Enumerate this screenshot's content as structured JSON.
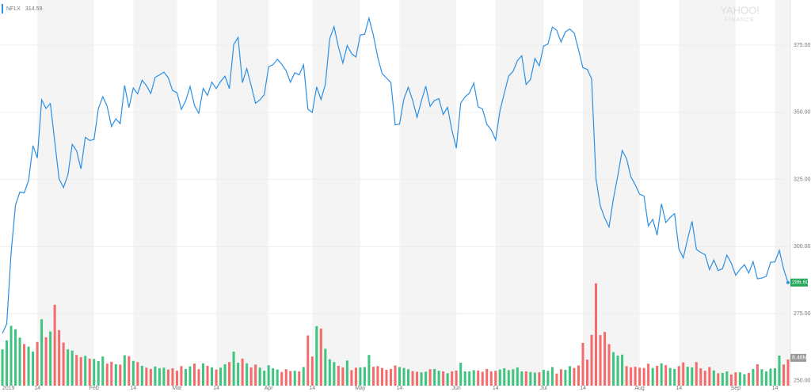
{
  "chart_data": {
    "type": "stock",
    "ticker": "NFLX",
    "legend_price": "314.59",
    "watermark": [
      "YAHOO!",
      "FINANCE"
    ],
    "series": [
      {
        "name": "NFLX",
        "color": "#2b8fe3",
        "axis": "y",
        "values": [
          267.66,
          271.2,
          297.57,
          315.34,
          320.27,
          319.96,
          324.66,
          337.59,
          332.94,
          354.64,
          351.39,
          353.19,
          339.1,
          325.16,
          321.99,
          326.67,
          338.05,
          335.66,
          328.9,
          340.66,
          339.5,
          339.85,
          351.34,
          355.81,
          352.19,
          344.71,
          347.57,
          345.73,
          359.97,
          351.77,
          359.07,
          356.87,
          361.92,
          359.91,
          356.97,
          363.02,
          363.91,
          364.97,
          362.87,
          358.1,
          357.32,
          351.04,
          354.3,
          359.61,
          352.6,
          349.6,
          358.86,
          356.27,
          361.21,
          358.82,
          361.46,
          363.44,
          358.78,
          375.22,
          377.87,
          361.01,
          366.23,
          359.97,
          353.37,
          354.61,
          356.56,
          366.96,
          367.72,
          369.75,
          367.88,
          365.49,
          361.19,
          364.71,
          363.92,
          367.65,
          351.14,
          349.97,
          359.46,
          354.74,
          360.35,
          377.34,
          381.89,
          374.23,
          368.33,
          374.85,
          371.83,
          370.54,
          378.81,
          379.06,
          385.03,
          378.67,
          370.46,
          364.37,
          362.75,
          361.04,
          345.26,
          345.61,
          354.99,
          359.31,
          354.45,
          348.11,
          354.27,
          359.73,
          352.21,
          354.39,
          355.06,
          349.19,
          351.85,
          343.28,
          336.63,
          353.4,
          355.73,
          357.13,
          360.87,
          352.01,
          351.27,
          345.56,
          343.43,
          339.73,
          350.62,
          357.12,
          363.52,
          365.21,
          369.21,
          371.04,
          360.3,
          362.2,
          370.02,
          367.32,
          374.6,
          375.43,
          381.72,
          380.55,
          376.16,
          379.93,
          381.0,
          379.5,
          373.25,
          366.6,
          365.99,
          362.44,
          325.21,
          315.1,
          310.62,
          307.3,
          317.94,
          326.46,
          335.78,
          332.7,
          325.93,
          322.99,
          319.5,
          318.83,
          307.63,
          310.1,
          304.29,
          315.9,
          308.93,
          310.83,
          312.28,
          299.11,
          295.76,
          302.8,
          309.38,
          298.99,
          297.81,
          296.93,
          291.44,
          294.98,
          291.03,
          291.77,
          296.78,
          293.75,
          289.29,
          291.52,
          293.25,
          290.17,
          294.34,
          287.99,
          288.27,
          288.86,
          294.15,
          294.29,
          298.6,
          291.56,
          286.6
        ]
      }
    ],
    "volume": {
      "up_color": "#3dc47e",
      "down_color": "#f36b6b",
      "values": [
        11.7,
        14.6,
        19.3,
        18.2,
        15.5,
        13.4,
        12.6,
        11.0,
        14.1,
        21.4,
        15.6,
        17.5,
        26.1,
        17.9,
        13.9,
        11.7,
        11.3,
        9.9,
        9.2,
        9.6,
        8.7,
        8.6,
        7.9,
        9.4,
        7.1,
        7.7,
        6.9,
        6.8,
        9.8,
        9.5,
        8.0,
        7.6,
        6.4,
        5.8,
        5.4,
        6.2,
        5.6,
        5.8,
        5.2,
        5.6,
        4.8,
        6.3,
        5.4,
        6.2,
        7.1,
        5.3,
        7.2,
        6.4,
        5.9,
        5.2,
        5.8,
        6.9,
        7.6,
        11.0,
        7.4,
        8.7,
        7.2,
        5.9,
        6.8,
        5.8,
        4.8,
        6.6,
        5.6,
        5.2,
        4.4,
        5.3,
        4.7,
        4.8,
        4.6,
        6.0,
        16.2,
        9.4,
        19.2,
        18.4,
        11.9,
        8.5,
        7.6,
        6.4,
        5.9,
        8.1,
        5.0,
        5.8,
        5.9,
        6.0,
        9.9,
        6.1,
        6.3,
        5.7,
        5.1,
        5.4,
        6.5,
        6.0,
        5.7,
        5.3,
        4.7,
        4.5,
        4.3,
        4.5,
        5.3,
        5.4,
        4.8,
        4.6,
        4.0,
        4.6,
        4.9,
        7.4,
        4.6,
        4.6,
        5.0,
        4.9,
        4.5,
        5.4,
        4.6,
        4.8,
        5.2,
        5.6,
        5.0,
        5.3,
        5.9,
        4.6,
        4.6,
        4.4,
        4.2,
        4.3,
        5.1,
        4.8,
        6.0,
        3.9,
        5.3,
        5.1,
        6.3,
        5.7,
        6.5,
        13.8,
        8.4,
        16.4,
        33.0,
        16.3,
        17.3,
        13.4,
        10.8,
        9.7,
        10.0,
        6.3,
        5.9,
        6.1,
        5.8,
        5.7,
        7.1,
        5.7,
        6.4,
        7.2,
        6.6,
        5.7,
        5.4,
        6.3,
        7.5,
        6.1,
        5.9,
        7.6,
        5.6,
        4.8,
        6.0,
        4.9,
        4.0,
        4.1,
        4.6,
        3.6,
        4.3,
        4.3,
        3.7,
        4.1,
        5.4,
        6.9,
        5.3,
        4.6,
        5.5,
        5.6,
        9.7,
        6.8,
        8.46
      ],
      "lim": [
        0,
        36
      ]
    },
    "last_price_label": "286.60",
    "last_volume_label": "8.46M",
    "last_price_color": "#21a65a",
    "xlim": [
      0,
      180
    ],
    "xticks": [
      {
        "value": 0,
        "label": "2019"
      },
      {
        "value": 8,
        "label": "14"
      },
      {
        "value": 21,
        "label": "Feb"
      },
      {
        "value": 30,
        "label": "14"
      },
      {
        "value": 40,
        "label": "Mar"
      },
      {
        "value": 49,
        "label": "14"
      },
      {
        "value": 61,
        "label": "Apr"
      },
      {
        "value": 71,
        "label": "14"
      },
      {
        "value": 82,
        "label": "May"
      },
      {
        "value": 91,
        "label": "14"
      },
      {
        "value": 104,
        "label": "Jun"
      },
      {
        "value": 113,
        "label": "14"
      },
      {
        "value": 124,
        "label": "Jul"
      },
      {
        "value": 133,
        "label": "14"
      },
      {
        "value": 146,
        "label": "Aug"
      },
      {
        "value": 155,
        "label": "14"
      },
      {
        "value": 168,
        "label": "Sep"
      },
      {
        "value": 177,
        "label": "14"
      }
    ],
    "ylim": [
      248.2,
      391.8
    ],
    "yticks": [
      {
        "value": 250,
        "label": "250.00"
      },
      {
        "value": 275,
        "label": "275.00"
      },
      {
        "value": 300,
        "label": "300.00"
      },
      {
        "value": 325,
        "label": "325.00"
      },
      {
        "value": 350,
        "label": "350.00"
      },
      {
        "value": 375,
        "label": "375.00"
      }
    ],
    "grid": true,
    "band_color": "#f4f4f4"
  }
}
